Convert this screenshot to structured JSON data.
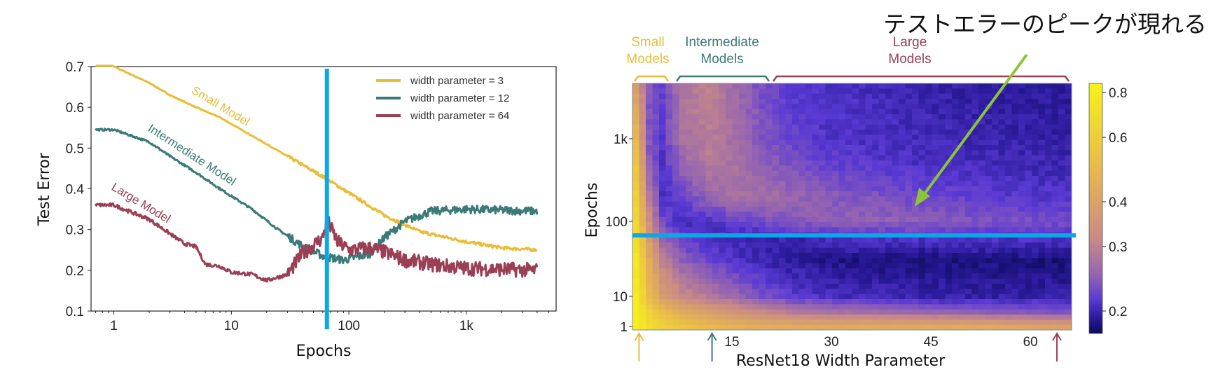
{
  "annotation": "テストエラーのピークが現れる",
  "colors": {
    "small": "#e9bd3a",
    "intermediate": "#3c7a7a",
    "large": "#9b3f55",
    "marker": "#0aa8e6",
    "arrow": "#8cc43c"
  },
  "chart_data": [
    {
      "type": "line",
      "xlabel": "Epochs",
      "ylabel": "Test Error",
      "xscale": "log",
      "xlim": [
        0.64,
        5800
      ],
      "ylim": [
        0.1,
        0.7
      ],
      "xticks": [
        {
          "v": 1,
          "label": "1"
        },
        {
          "v": 10,
          "label": "10"
        },
        {
          "v": 100,
          "label": "100"
        },
        {
          "v": 1000,
          "label": "1k"
        }
      ],
      "yticks": [
        {
          "v": 0.1,
          "label": "0.1"
        },
        {
          "v": 0.2,
          "label": "0.2"
        },
        {
          "v": 0.3,
          "label": "0.3"
        },
        {
          "v": 0.4,
          "label": "0.4"
        },
        {
          "v": 0.5,
          "label": "0.5"
        },
        {
          "v": 0.6,
          "label": "0.6"
        },
        {
          "v": 0.7,
          "label": "0.7"
        }
      ],
      "legend_position": "top-right",
      "vertical_marker_epoch": 65,
      "series": [
        {
          "name": "width parameter = 3",
          "annotation": "Small Model",
          "key": "small",
          "noise": 0.004,
          "x": [
            0.7,
            1,
            2,
            3,
            5,
            8,
            15,
            30,
            60,
            100,
            200,
            400,
            1000,
            2000,
            4000
          ],
          "y": [
            0.72,
            0.7,
            0.66,
            0.63,
            0.6,
            0.575,
            0.53,
            0.48,
            0.43,
            0.39,
            0.335,
            0.295,
            0.27,
            0.255,
            0.25
          ]
        },
        {
          "name": "width parameter = 12",
          "annotation": "Intermediate Model",
          "key": "intermediate",
          "noise": 0.01,
          "x": [
            0.7,
            1,
            2,
            3,
            5,
            8,
            15,
            25,
            40,
            60,
            90,
            150,
            200,
            300,
            500,
            1000,
            4000
          ],
          "y": [
            0.545,
            0.545,
            0.515,
            0.48,
            0.44,
            0.4,
            0.35,
            0.3,
            0.26,
            0.235,
            0.225,
            0.24,
            0.28,
            0.32,
            0.345,
            0.35,
            0.345
          ]
        },
        {
          "name": "width parameter = 64",
          "annotation": "Large Model",
          "key": "large",
          "noise": 0.018,
          "x": [
            0.7,
            1,
            2,
            4,
            5,
            6,
            8,
            10,
            15,
            20,
            30,
            40,
            60,
            65,
            80,
            100,
            150,
            200,
            300,
            500,
            1000,
            4000
          ],
          "y": [
            0.36,
            0.36,
            0.325,
            0.265,
            0.258,
            0.215,
            0.21,
            0.195,
            0.19,
            0.175,
            0.19,
            0.24,
            0.28,
            0.325,
            0.27,
            0.25,
            0.255,
            0.245,
            0.225,
            0.215,
            0.205,
            0.2
          ]
        }
      ]
    },
    {
      "type": "heatmap",
      "xlabel": "ResNet18 Width Parameter",
      "ylabel": "Epochs",
      "xticks": [
        15,
        30,
        45,
        60
      ],
      "yticks": [
        {
          "v": 1,
          "label": "1"
        },
        {
          "v": 10,
          "label": "10"
        },
        {
          "v": 100,
          "label": "100"
        },
        {
          "v": 1000,
          "label": "1k"
        }
      ],
      "colorbar_ticks": [
        {
          "v": 0.8,
          "label": "0.8"
        },
        {
          "v": 0.6,
          "label": "0.6"
        },
        {
          "v": 0.4,
          "label": "0.4"
        },
        {
          "v": 0.3,
          "label": "0.3"
        },
        {
          "v": 0.2,
          "label": "0.2"
        }
      ],
      "horizontal_marker_epoch": 65,
      "groups": [
        {
          "label1": "Small",
          "label2": "Models",
          "key": "small"
        },
        {
          "label1": "Intermediate",
          "label2": "Models",
          "key": "intermediate"
        },
        {
          "label1": "Large",
          "label2": "Models",
          "key": "large"
        }
      ],
      "widths": [
        1,
        3,
        5,
        8,
        12,
        16,
        20,
        25,
        30,
        40,
        50,
        64
      ],
      "epochs": [
        1,
        3,
        10,
        30,
        60,
        100,
        200,
        500,
        1000,
        4000
      ],
      "values": [
        [
          0.82,
          0.75,
          0.7,
          0.65,
          0.6,
          0.58,
          0.56,
          0.55,
          0.55,
          0.55,
          0.55,
          0.52
        ],
        [
          0.82,
          0.7,
          0.62,
          0.55,
          0.5,
          0.46,
          0.42,
          0.38,
          0.36,
          0.34,
          0.32,
          0.3
        ],
        [
          0.8,
          0.62,
          0.5,
          0.42,
          0.38,
          0.33,
          0.29,
          0.26,
          0.24,
          0.23,
          0.22,
          0.22
        ],
        [
          0.78,
          0.55,
          0.4,
          0.32,
          0.28,
          0.25,
          0.23,
          0.21,
          0.2,
          0.19,
          0.19,
          0.19
        ],
        [
          0.75,
          0.5,
          0.33,
          0.27,
          0.24,
          0.23,
          0.23,
          0.23,
          0.24,
          0.25,
          0.25,
          0.25
        ],
        [
          0.72,
          0.45,
          0.28,
          0.24,
          0.25,
          0.27,
          0.29,
          0.31,
          0.32,
          0.32,
          0.3,
          0.29
        ],
        [
          0.7,
          0.38,
          0.25,
          0.27,
          0.33,
          0.36,
          0.35,
          0.33,
          0.31,
          0.29,
          0.27,
          0.25
        ],
        [
          0.65,
          0.32,
          0.25,
          0.33,
          0.38,
          0.36,
          0.32,
          0.29,
          0.27,
          0.25,
          0.24,
          0.23
        ],
        [
          0.6,
          0.3,
          0.26,
          0.36,
          0.39,
          0.35,
          0.3,
          0.27,
          0.25,
          0.24,
          0.23,
          0.22
        ],
        [
          0.5,
          0.3,
          0.27,
          0.37,
          0.4,
          0.34,
          0.29,
          0.26,
          0.25,
          0.23,
          0.22,
          0.21
        ]
      ]
    }
  ]
}
